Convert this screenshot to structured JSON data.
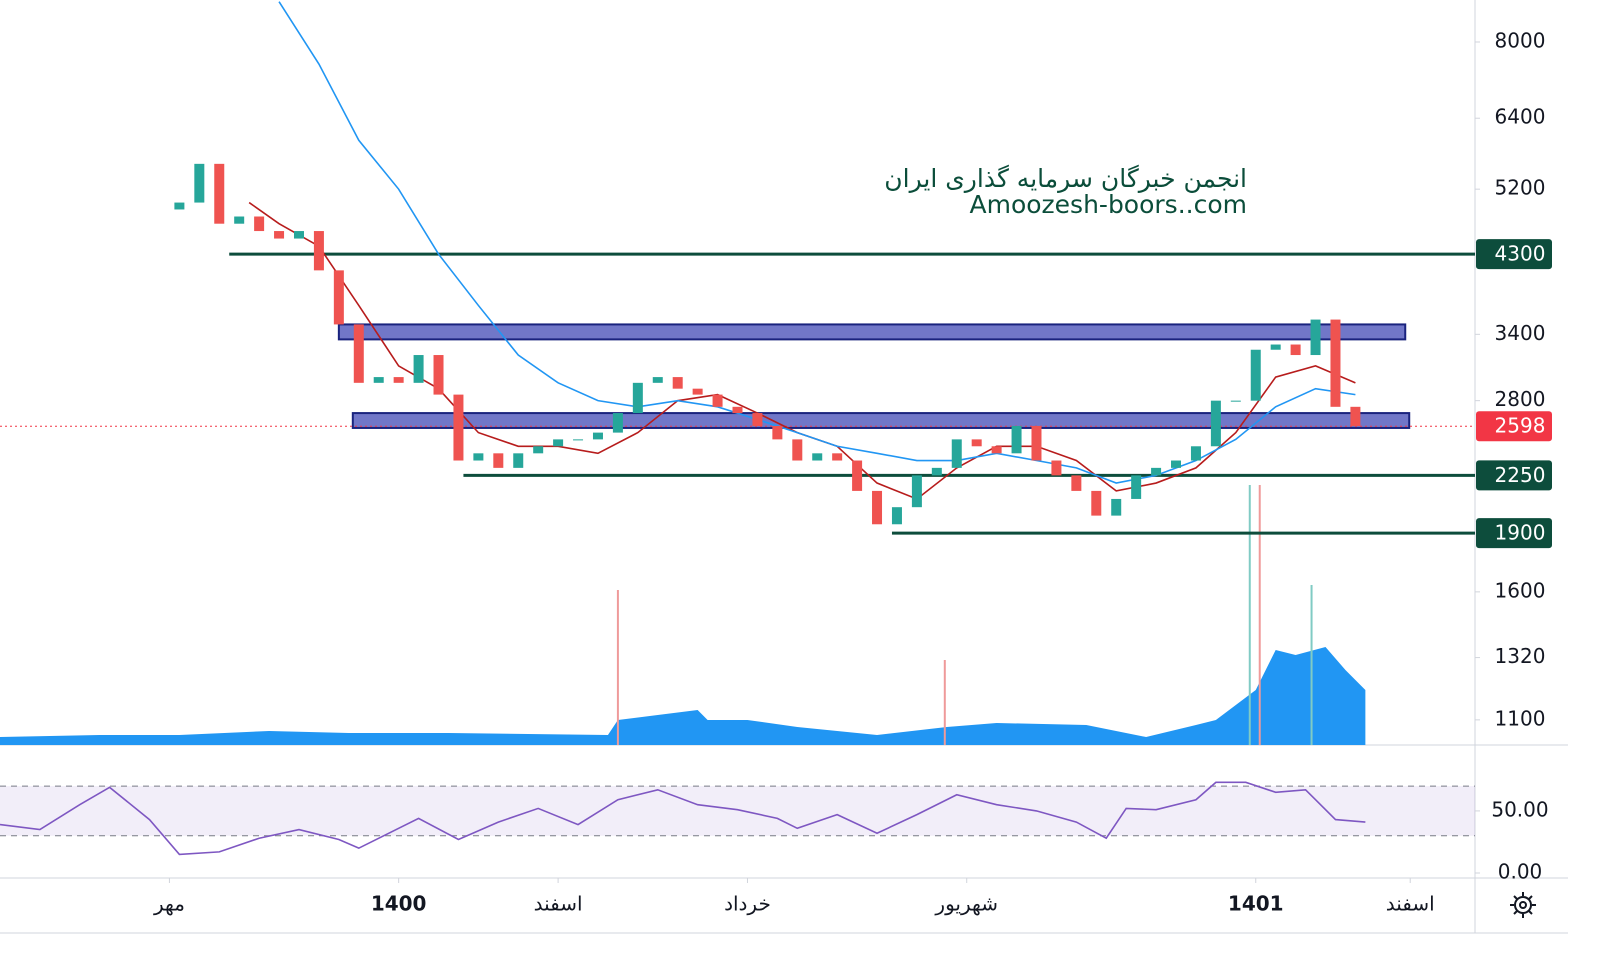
{
  "chart_data": {
    "type": "candlestick",
    "watermark": [
      "انجمن خبرگان سرمایه گذاری ایران",
      "Amoozesh-boors..com"
    ],
    "log_scale": true,
    "xlim": [
      0,
      148
    ],
    "xticks": [
      {
        "value": 17,
        "label": "مهر"
      },
      {
        "value": 40,
        "label": "1400"
      },
      {
        "value": 56,
        "label": "اسفند"
      },
      {
        "value": 75,
        "label": "خرداد"
      },
      {
        "value": 97,
        "label": "شهریور"
      },
      {
        "value": 126,
        "label": "1401"
      },
      {
        "value": 141.5,
        "label": "اسفند"
      }
    ],
    "ylim": [
      1022,
      9046
    ],
    "yticks": [
      8000,
      6400,
      5200,
      3400,
      2800,
      1600,
      1320,
      1100
    ],
    "up_color": "#26a69a",
    "down_color": "#ef5350",
    "x": [
      18,
      20,
      22,
      24,
      26,
      28,
      30,
      32,
      34,
      36,
      38,
      40,
      42,
      44,
      46,
      48,
      50,
      52,
      54,
      56,
      58,
      60,
      62,
      64,
      66,
      68,
      70,
      72,
      74,
      76,
      78,
      80,
      82,
      84,
      86,
      88,
      90,
      92,
      94,
      96,
      98,
      100,
      102,
      104,
      106,
      108,
      110,
      112,
      114,
      116,
      118,
      120,
      122,
      124,
      126,
      128,
      130,
      132,
      134,
      136
    ],
    "open": [
      4900,
      5000,
      5600,
      4700,
      4800,
      4600,
      4500,
      4600,
      4100,
      3500,
      2950,
      3000,
      2950,
      3200,
      2850,
      2350,
      2400,
      2300,
      2400,
      2450,
      2500,
      2500,
      2550,
      2700,
      2950,
      3000,
      2900,
      2850,
      2750,
      2700,
      2600,
      2500,
      2350,
      2400,
      2350,
      2150,
      1950,
      2050,
      2250,
      2300,
      2500,
      2450,
      2400,
      2600,
      2350,
      2250,
      2150,
      2000,
      2100,
      2250,
      2300,
      2350,
      2450,
      2800,
      2800,
      3250,
      3300,
      3200,
      3550,
      2750
    ],
    "close": [
      5000,
      5600,
      4700,
      4800,
      4600,
      4500,
      4600,
      4100,
      3500,
      2950,
      3000,
      2950,
      3200,
      2850,
      2350,
      2400,
      2300,
      2400,
      2450,
      2500,
      2500,
      2550,
      2700,
      2950,
      3000,
      2900,
      2850,
      2750,
      2700,
      2600,
      2500,
      2350,
      2400,
      2350,
      2150,
      1950,
      2050,
      2250,
      2300,
      2500,
      2450,
      2400,
      2600,
      2350,
      2250,
      2150,
      2000,
      2100,
      2250,
      2300,
      2350,
      2450,
      2800,
      2800,
      3250,
      3300,
      3200,
      3550,
      2750,
      2600
    ],
    "series": [
      {
        "color": "#b71c1c",
        "x": [
          25,
          28,
          32,
          36,
          40,
          44,
          48,
          52,
          56,
          60,
          64,
          68,
          72,
          76,
          80,
          84,
          88,
          92,
          96,
          100,
          104,
          108,
          112,
          116,
          120,
          124,
          128,
          132,
          136
        ],
        "values": [
          5000,
          4700,
          4400,
          3700,
          3100,
          2900,
          2550,
          2450,
          2450,
          2400,
          2550,
          2800,
          2850,
          2700,
          2550,
          2450,
          2200,
          2100,
          2300,
          2450,
          2450,
          2350,
          2150,
          2200,
          2300,
          2550,
          3000,
          3100,
          2950
        ]
      },
      {
        "color": "#2196f3",
        "x": [
          28,
          32,
          36,
          40,
          44,
          48,
          52,
          56,
          60,
          64,
          68,
          72,
          76,
          80,
          84,
          88,
          92,
          96,
          100,
          104,
          108,
          112,
          116,
          120,
          124,
          128,
          132,
          136
        ],
        "values": [
          9000,
          7500,
          6000,
          5200,
          4300,
          3700,
          3200,
          2950,
          2800,
          2750,
          2800,
          2750,
          2650,
          2550,
          2450,
          2400,
          2350,
          2350,
          2400,
          2350,
          2300,
          2200,
          2250,
          2350,
          2500,
          2750,
          2900,
          2850
        ]
      }
    ],
    "levels": [
      {
        "value": 4300,
        "x_from": 23
      },
      {
        "value": 2250,
        "x_from": 46.5
      },
      {
        "value": 1900,
        "x_from": 89.5
      }
    ],
    "level_color": "#0d4d3c",
    "zones": [
      {
        "low": 3350,
        "high": 3500,
        "x_from": 34,
        "x_to": 141
      },
      {
        "low": 2585,
        "high": 2700,
        "x_from": 35.4,
        "x_to": 141.4
      }
    ],
    "zone_color": "#7177c8",
    "last_price": 2598,
    "last_color": "#f23645",
    "volume": {
      "color": "#2196f3",
      "x": [
        0,
        10,
        18,
        27,
        35,
        45,
        61,
        62,
        66,
        70,
        71,
        75,
        80,
        88,
        95,
        100,
        109,
        115,
        120,
        122,
        126,
        128,
        130,
        133,
        135,
        137
      ],
      "values": [
        8,
        10,
        10,
        14,
        12,
        12,
        10,
        25,
        30,
        35,
        25,
        25,
        18,
        10,
        18,
        22,
        20,
        8,
        20,
        25,
        55,
        95,
        90,
        98,
        75,
        55
      ],
      "spikes": {
        "x": [
          62,
          94.8,
          125.4,
          126.4,
          131.6
        ],
        "values": [
          155,
          85,
          260,
          260,
          160
        ],
        "colors": [
          "#ef9a9a",
          "#ef9a9a",
          "#80cbc4",
          "#ef9a9a",
          "#80cbc4"
        ]
      }
    },
    "rsi": {
      "color": "#7e57c2",
      "ylim": [
        0,
        91
      ],
      "yticks": [
        {
          "value": 50,
          "label": "50.00"
        },
        {
          "value": 0,
          "label": "0.00"
        }
      ],
      "bands": [
        30,
        70
      ],
      "x": [
        0,
        4,
        8,
        11,
        15,
        18,
        22,
        26,
        30,
        34,
        36,
        40,
        42,
        46,
        50,
        54,
        58,
        62,
        66,
        70,
        74,
        78,
        80,
        84,
        88,
        92,
        96,
        100,
        104,
        108,
        111,
        113,
        116,
        120,
        122,
        125,
        128,
        131,
        132,
        134,
        137
      ],
      "values": [
        39,
        35,
        55,
        69,
        43,
        15,
        17,
        28,
        35,
        27,
        20,
        36,
        44,
        27,
        41,
        52,
        39,
        59,
        67,
        55,
        51,
        44,
        36,
        47,
        32,
        47,
        63,
        55,
        50,
        41,
        28,
        52,
        51,
        59,
        73,
        73,
        65,
        67,
        59,
        43,
        41
      ]
    }
  }
}
